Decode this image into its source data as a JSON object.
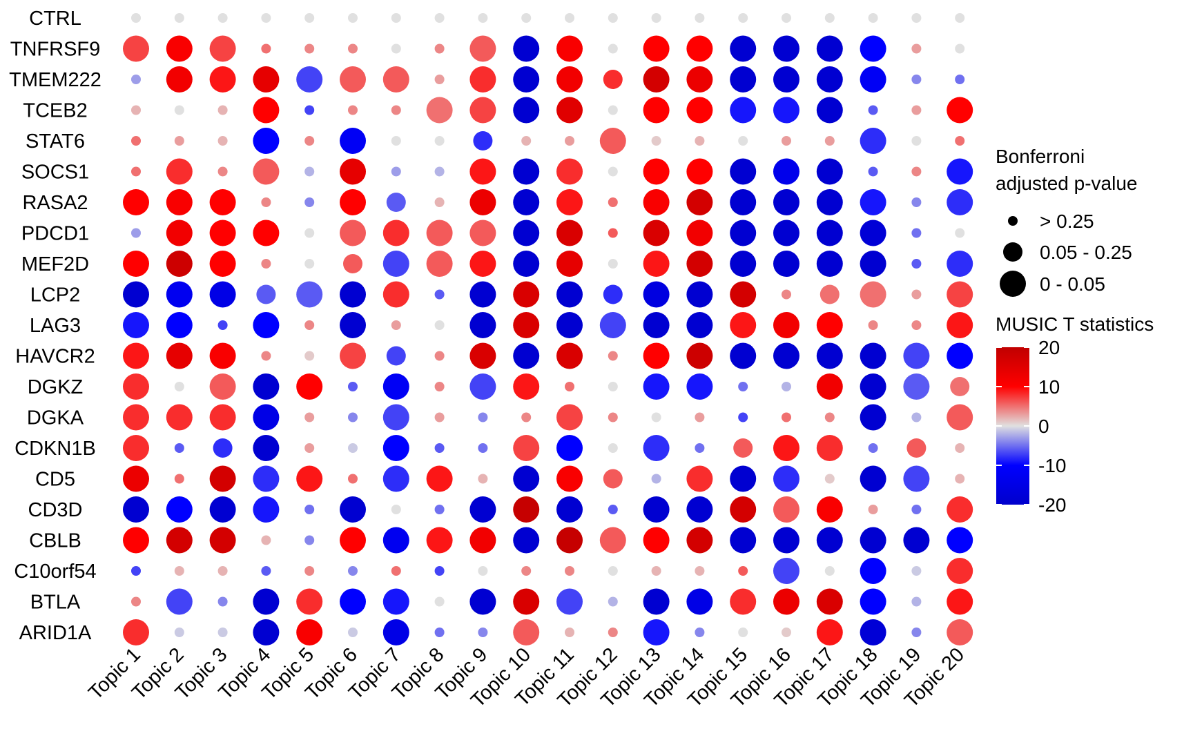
{
  "chart_data": {
    "type": "heatmap",
    "subtype": "dot-plot",
    "rows": [
      "CTRL",
      "TNFRSF9",
      "TMEM222",
      "TCEB2",
      "STAT6",
      "SOCS1",
      "RASA2",
      "PDCD1",
      "MEF2D",
      "LCP2",
      "LAG3",
      "HAVCR2",
      "DGKZ",
      "DGKA",
      "CDKN1B",
      "CD5",
      "CD3D",
      "CBLB",
      "C10orf54",
      "BTLA",
      "ARID1A"
    ],
    "columns": [
      "Topic 1",
      "Topic 2",
      "Topic 3",
      "Topic 4",
      "Topic 5",
      "Topic 6",
      "Topic 7",
      "Topic 8",
      "Topic 9",
      "Topic 10",
      "Topic 11",
      "Topic 12",
      "Topic 13",
      "Topic 14",
      "Topic 15",
      "Topic 16",
      "Topic 17",
      "Topic 18",
      "Topic 19",
      "Topic 20"
    ],
    "t_statistics": [
      [
        0,
        0,
        0,
        0,
        0,
        0,
        0,
        0,
        0,
        0,
        0,
        0,
        0,
        0,
        0,
        0,
        0,
        0,
        0,
        0
      ],
      [
        7,
        11,
        7,
        5,
        4,
        4,
        0,
        4,
        6,
        -19,
        11,
        0,
        10,
        10,
        -19,
        -19,
        -19,
        -10,
        3,
        0
      ],
      [
        -3,
        12,
        9,
        14,
        -7,
        6,
        6,
        3,
        8,
        -19,
        12,
        8,
        17,
        13,
        -19,
        -19,
        -19,
        -12,
        -4,
        -5
      ],
      [
        2,
        0,
        2,
        10,
        -7,
        4,
        4,
        5,
        7,
        -19,
        15,
        0,
        10,
        10,
        -9,
        -9,
        -19,
        -6,
        3,
        10
      ],
      [
        5,
        3,
        2,
        -10,
        4,
        -12,
        0,
        0,
        -8,
        2,
        3,
        6,
        1,
        2,
        0,
        3,
        3,
        -8,
        0,
        5
      ],
      [
        5,
        8,
        4,
        6,
        -2,
        14,
        -3,
        -2,
        9,
        -19,
        8,
        0,
        10,
        10,
        -19,
        -14,
        -19,
        -6,
        4,
        -9
      ],
      [
        10,
        11,
        10,
        4,
        -4,
        10,
        -6,
        2,
        13,
        -19,
        9,
        5,
        11,
        17,
        -19,
        -19,
        -19,
        -9,
        -4,
        -8
      ],
      [
        -3,
        12,
        10,
        10,
        0,
        6,
        8,
        6,
        6,
        -19,
        16,
        6,
        16,
        12,
        -19,
        -19,
        -19,
        -18,
        -5,
        0
      ],
      [
        10,
        18,
        10,
        4,
        0,
        6,
        -7,
        6,
        9,
        -19,
        14,
        0,
        9,
        17,
        -19,
        -19,
        -19,
        -19,
        -6,
        -8
      ],
      [
        -19,
        -13,
        -15,
        -6,
        -6,
        -19,
        8,
        -6,
        -19,
        16,
        -19,
        -8,
        -16,
        -19,
        17,
        4,
        5,
        5,
        3,
        7
      ],
      [
        -9,
        -10,
        -7,
        -10,
        4,
        -19,
        3,
        0,
        -19,
        16,
        -19,
        -7,
        -19,
        -19,
        9,
        12,
        10,
        4,
        4,
        9
      ],
      [
        9,
        14,
        11,
        4,
        1,
        7,
        -7,
        4,
        16,
        -19,
        16,
        4,
        10,
        18,
        -19,
        -19,
        -19,
        -19,
        -7,
        -10
      ],
      [
        8,
        0,
        6,
        -19,
        10,
        -6,
        -12,
        4,
        -7,
        9,
        5,
        0,
        -9,
        -9,
        -5,
        -2,
        12,
        -19,
        -6,
        5
      ],
      [
        8,
        8,
        8,
        -15,
        3,
        -4,
        -7,
        3,
        -4,
        4,
        7,
        4,
        0,
        3,
        -7,
        5,
        4,
        -19,
        -2,
        6
      ],
      [
        8,
        -6,
        -8,
        -19,
        3,
        -1,
        -10,
        -6,
        -5,
        7,
        -10,
        0,
        -8,
        -5,
        6,
        9,
        8,
        -5,
        6,
        2
      ],
      [
        13,
        5,
        17,
        -8,
        9,
        5,
        -8,
        9,
        2,
        -19,
        11,
        6,
        -2,
        8,
        -19,
        -8,
        1,
        -19,
        -7,
        2
      ],
      [
        -19,
        -10,
        -19,
        -9,
        -5,
        -19,
        0,
        -5,
        -19,
        19,
        -19,
        -6,
        -19,
        -19,
        17,
        6,
        11,
        3,
        -5,
        8
      ],
      [
        10,
        17,
        17,
        2,
        -4,
        10,
        -13,
        9,
        12,
        -19,
        19,
        6,
        10,
        17,
        -19,
        -19,
        -19,
        -19,
        -19,
        -10
      ],
      [
        -7,
        2,
        2,
        -6,
        4,
        -4,
        5,
        -7,
        0,
        4,
        4,
        0,
        2,
        2,
        6,
        -7,
        0,
        -10,
        -1,
        8
      ],
      [
        4,
        -7,
        -4,
        -19,
        8,
        -10,
        -9,
        0,
        -19,
        16,
        -7,
        -2,
        -19,
        -15,
        8,
        13,
        16,
        -10,
        -2,
        9
      ],
      [
        8,
        -1,
        -1,
        -19,
        11,
        -1,
        -15,
        -5,
        -4,
        6,
        2,
        4,
        -9,
        -4,
        0,
        1,
        9,
        -18,
        -4,
        6
      ]
    ],
    "p_value_bins": [
      [
        1,
        1,
        1,
        1,
        1,
        1,
        1,
        1,
        1,
        1,
        1,
        1,
        1,
        1,
        1,
        1,
        1,
        1,
        1,
        1
      ],
      [
        3,
        3,
        3,
        1,
        1,
        1,
        1,
        1,
        3,
        3,
        3,
        1,
        3,
        3,
        3,
        3,
        3,
        3,
        1,
        1
      ],
      [
        1,
        3,
        3,
        3,
        3,
        3,
        3,
        1,
        3,
        3,
        3,
        2,
        3,
        3,
        3,
        3,
        3,
        3,
        1,
        1
      ],
      [
        1,
        1,
        1,
        3,
        1,
        1,
        1,
        3,
        3,
        3,
        3,
        1,
        3,
        3,
        3,
        3,
        3,
        1,
        1,
        3
      ],
      [
        1,
        1,
        1,
        3,
        1,
        3,
        1,
        1,
        2,
        1,
        1,
        3,
        1,
        1,
        1,
        1,
        1,
        3,
        1,
        1
      ],
      [
        1,
        3,
        1,
        3,
        1,
        3,
        1,
        1,
        3,
        3,
        3,
        1,
        3,
        3,
        3,
        3,
        3,
        1,
        1,
        3
      ],
      [
        3,
        3,
        3,
        1,
        1,
        3,
        2,
        1,
        3,
        3,
        3,
        1,
        3,
        3,
        3,
        3,
        3,
        3,
        1,
        3
      ],
      [
        1,
        3,
        3,
        3,
        1,
        3,
        3,
        3,
        3,
        3,
        3,
        1,
        3,
        3,
        3,
        3,
        3,
        3,
        1,
        1
      ],
      [
        3,
        3,
        3,
        1,
        1,
        2,
        3,
        3,
        3,
        3,
        3,
        1,
        3,
        3,
        3,
        3,
        3,
        3,
        1,
        3
      ],
      [
        3,
        3,
        3,
        2,
        3,
        3,
        3,
        1,
        3,
        3,
        3,
        2,
        3,
        3,
        3,
        1,
        2,
        3,
        1,
        3
      ],
      [
        3,
        3,
        1,
        3,
        1,
        3,
        1,
        1,
        3,
        3,
        3,
        3,
        3,
        3,
        3,
        3,
        3,
        1,
        1,
        3
      ],
      [
        3,
        3,
        3,
        1,
        1,
        3,
        2,
        1,
        3,
        3,
        3,
        1,
        3,
        3,
        3,
        3,
        3,
        3,
        3,
        3
      ],
      [
        3,
        1,
        3,
        3,
        3,
        1,
        3,
        1,
        3,
        3,
        1,
        1,
        3,
        3,
        1,
        1,
        3,
        3,
        3,
        2
      ],
      [
        3,
        3,
        3,
        3,
        1,
        1,
        3,
        1,
        1,
        1,
        3,
        1,
        1,
        1,
        1,
        1,
        1,
        3,
        1,
        3
      ],
      [
        3,
        1,
        2,
        3,
        1,
        1,
        3,
        1,
        1,
        3,
        3,
        1,
        3,
        1,
        2,
        3,
        3,
        1,
        2,
        1
      ],
      [
        3,
        1,
        3,
        3,
        3,
        1,
        3,
        3,
        1,
        3,
        3,
        2,
        1,
        3,
        3,
        3,
        1,
        3,
        3,
        1
      ],
      [
        3,
        3,
        3,
        3,
        1,
        3,
        1,
        1,
        3,
        3,
        3,
        1,
        3,
        3,
        3,
        3,
        3,
        1,
        1,
        3
      ],
      [
        3,
        3,
        3,
        1,
        1,
        3,
        3,
        3,
        3,
        3,
        3,
        3,
        3,
        3,
        3,
        3,
        3,
        3,
        3,
        3
      ],
      [
        1,
        1,
        1,
        1,
        1,
        1,
        1,
        1,
        1,
        1,
        1,
        1,
        1,
        1,
        1,
        3,
        1,
        3,
        1,
        3
      ],
      [
        1,
        3,
        1,
        3,
        3,
        3,
        3,
        1,
        3,
        3,
        3,
        1,
        3,
        3,
        3,
        3,
        3,
        3,
        1,
        3
      ],
      [
        3,
        1,
        1,
        3,
        3,
        1,
        3,
        1,
        1,
        3,
        1,
        1,
        3,
        1,
        1,
        1,
        3,
        3,
        1,
        3
      ]
    ],
    "legend_size": {
      "title_lines": [
        "Bonferroni",
        "adjusted p-value"
      ],
      "items": [
        {
          "label": "> 0.25",
          "bin": 1
        },
        {
          "label": "0.05 - 0.25",
          "bin": 2
        },
        {
          "label": "0 - 0.05",
          "bin": 3
        }
      ]
    },
    "legend_color": {
      "title": "MUSIC T statistics",
      "range": [
        -20,
        20
      ],
      "ticks": [
        20,
        10,
        0,
        -10,
        -20
      ],
      "tick_labels": [
        "20",
        "10",
        "0",
        "-10",
        "-20"
      ]
    },
    "colors": {
      "low": "#0000cc",
      "low_mid": "#0000ff",
      "mid": "#e0e0e0",
      "high_mid": "#ff0000",
      "high": "#c00000"
    },
    "legend_placement": "right",
    "grid": false
  }
}
